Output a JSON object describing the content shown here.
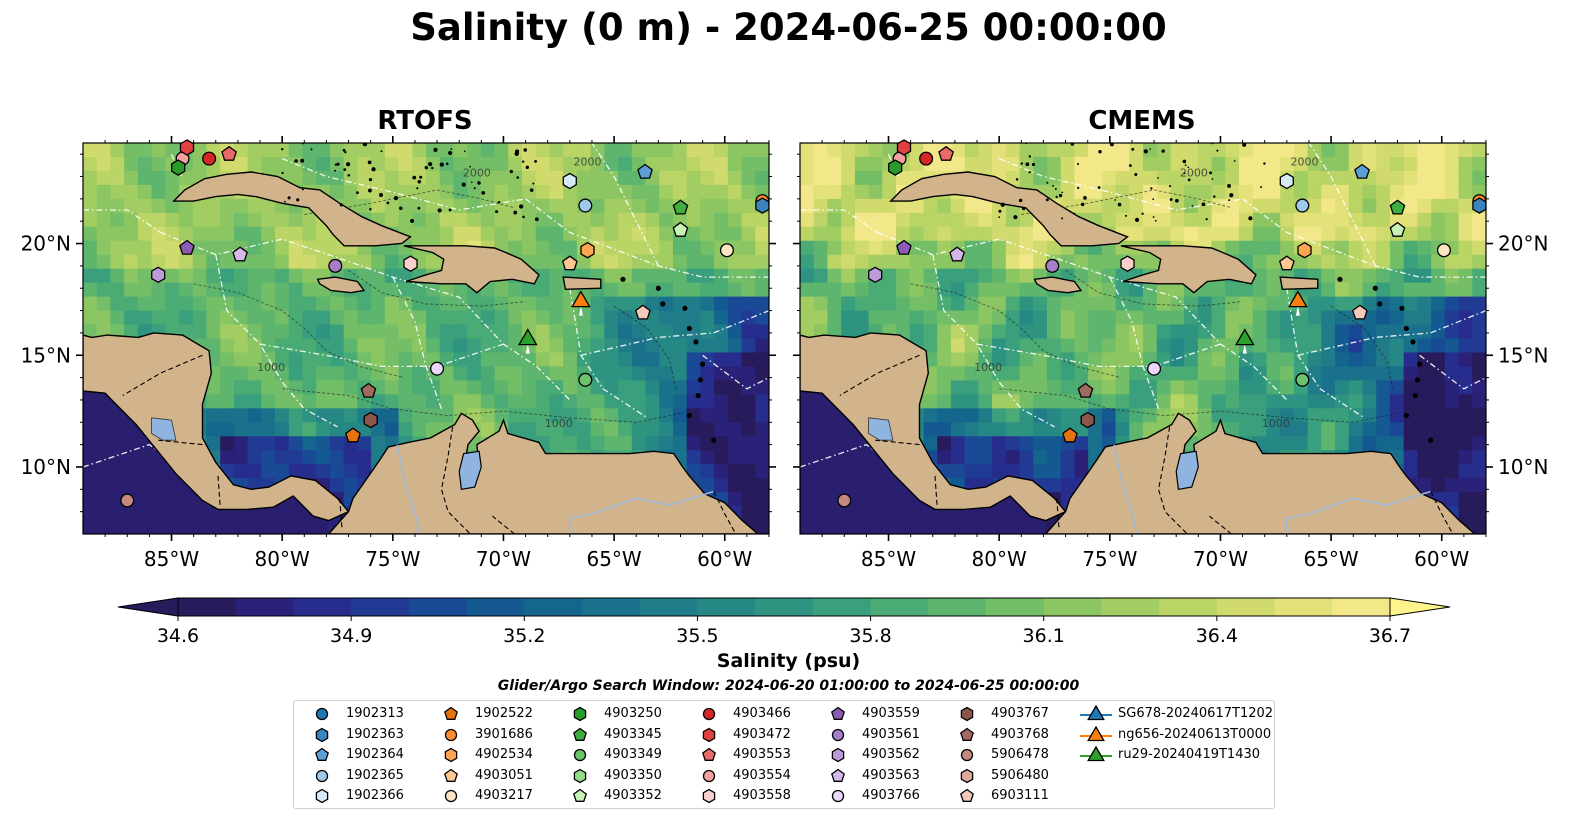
{
  "title": "Salinity (0 m) - 2024-06-25 00:00:00",
  "panels": [
    {
      "title": "RTOFS"
    },
    {
      "title": "CMEMS"
    }
  ],
  "map": {
    "lon_ticks": [
      "85°W",
      "80°W",
      "75°W",
      "70°W",
      "65°W",
      "60°W"
    ],
    "lat_ticks": [
      "20°N",
      "15°N",
      "10°N"
    ],
    "extent_lon": [
      -89,
      -58
    ],
    "extent_lat": [
      7,
      24.5
    ],
    "contour_labels": [
      "1000",
      "2000",
      "1000",
      "2000"
    ],
    "colors": {
      "land": "#d2b48c",
      "lakes": "#8fb4e0",
      "rivers": "#a0b8d8"
    }
  },
  "colorbar": {
    "min": 34.6,
    "max": 36.7,
    "ticks": [
      "34.6",
      "34.9",
      "35.2",
      "35.5",
      "35.8",
      "36.1",
      "36.4",
      "36.7"
    ],
    "label": "Salinity (psu)",
    "colors": [
      "#271b5c",
      "#2a2178",
      "#272d8c",
      "#213a94",
      "#1a4a95",
      "#145991",
      "#15668d",
      "#1a718b",
      "#1f7c88",
      "#258885",
      "#2e9381",
      "#3a9f7c",
      "#4aab75",
      "#5db56e",
      "#74be67",
      "#8bc662",
      "#a2cd62",
      "#bad465",
      "#d1da6d",
      "#e3e27a",
      "#f3e889"
    ]
  },
  "search_window": "Glider/Argo Search Window: 2024-06-20 01:00:00 to 2024-06-25 00:00:00",
  "legend": [
    {
      "label": "1902313",
      "marker": "circle",
      "color": "#1f77b4"
    },
    {
      "label": "1902363",
      "marker": "hexagon",
      "color": "#3a85bd"
    },
    {
      "label": "1902364",
      "marker": "pentagon",
      "color": "#5c9fd6"
    },
    {
      "label": "1902365",
      "marker": "circle",
      "color": "#9ec9ea"
    },
    {
      "label": "1902366",
      "marker": "hexagon",
      "color": "#d6e9f7"
    },
    {
      "label": "1902522",
      "marker": "pentagon",
      "color": "#e6740e"
    },
    {
      "label": "3901686",
      "marker": "circle",
      "color": "#ff8c2e"
    },
    {
      "label": "4902534",
      "marker": "hexagon",
      "color": "#ffa450"
    },
    {
      "label": "4903051",
      "marker": "pentagon",
      "color": "#ffc78f"
    },
    {
      "label": "4903217",
      "marker": "circle",
      "color": "#ffe4c4"
    },
    {
      "label": "4903250",
      "marker": "hexagon",
      "color": "#2a9b2a"
    },
    {
      "label": "4903345",
      "marker": "pentagon",
      "color": "#3fae3f"
    },
    {
      "label": "4903349",
      "marker": "circle",
      "color": "#6cc36c"
    },
    {
      "label": "4903350",
      "marker": "hexagon",
      "color": "#98da8a"
    },
    {
      "label": "4903352",
      "marker": "pentagon",
      "color": "#c8f2b8"
    },
    {
      "label": "4903466",
      "marker": "circle",
      "color": "#d62728"
    },
    {
      "label": "4903472",
      "marker": "hexagon",
      "color": "#e04040"
    },
    {
      "label": "4903553",
      "marker": "pentagon",
      "color": "#ea6a6a"
    },
    {
      "label": "4903554",
      "marker": "circle",
      "color": "#f4a0a0"
    },
    {
      "label": "4903558",
      "marker": "hexagon",
      "color": "#fbd0cc"
    },
    {
      "label": "4903559",
      "marker": "pentagon",
      "color": "#8d5bb5"
    },
    {
      "label": "4903561",
      "marker": "circle",
      "color": "#a77cc8"
    },
    {
      "label": "4903562",
      "marker": "hexagon",
      "color": "#bd9ad8"
    },
    {
      "label": "4903563",
      "marker": "pentagon",
      "color": "#d4b8ea"
    },
    {
      "label": "4903766",
      "marker": "circle",
      "color": "#ead8fb"
    },
    {
      "label": "4903767",
      "marker": "hexagon",
      "color": "#8c564b"
    },
    {
      "label": "4903768",
      "marker": "pentagon",
      "color": "#a06a5e"
    },
    {
      "label": "5906478",
      "marker": "circle",
      "color": "#c48a7e"
    },
    {
      "label": "5906480",
      "marker": "hexagon",
      "color": "#dba89c"
    },
    {
      "label": "6903111",
      "marker": "pentagon",
      "color": "#f5c8bc"
    },
    {
      "label": "SG678-20240617T1202",
      "marker": "triangle",
      "color": "#1f77b4"
    },
    {
      "label": "ng656-20240613T0000",
      "marker": "triangle",
      "color": "#ff7f0e"
    },
    {
      "label": "ru29-20240419T1430",
      "marker": "triangle",
      "color": "#2ca02c"
    }
  ],
  "floats": [
    {
      "id": "4903554",
      "lon": -84.5,
      "lat": 23.8
    },
    {
      "id": "4903472",
      "lon": -84.3,
      "lat": 24.3
    },
    {
      "id": "4903466",
      "lon": -83.3,
      "lat": 23.8
    },
    {
      "id": "4903553",
      "lon": -82.4,
      "lat": 24.0
    },
    {
      "id": "4903250",
      "lon": -84.7,
      "lat": 23.4
    },
    {
      "id": "4903559",
      "lon": -84.3,
      "lat": 19.8
    },
    {
      "id": "4903563",
      "lon": -81.9,
      "lat": 19.5
    },
    {
      "id": "4903562",
      "lon": -85.6,
      "lat": 18.6
    },
    {
      "id": "4903561",
      "lon": -77.6,
      "lat": 19.0
    },
    {
      "id": "4903558",
      "lon": -74.2,
      "lat": 19.1
    },
    {
      "id": "4903768",
      "lon": -76.1,
      "lat": 13.4
    },
    {
      "id": "4903767",
      "lon": -76.0,
      "lat": 12.1
    },
    {
      "id": "1902522",
      "lon": -76.8,
      "lat": 11.4
    },
    {
      "id": "4903766",
      "lon": -73.0,
      "lat": 14.4
    },
    {
      "id": "5906478",
      "lon": -87.0,
      "lat": 8.5
    },
    {
      "id": "1902366",
      "lon": -67.0,
      "lat": 22.8
    },
    {
      "id": "1902364",
      "lon": -63.6,
      "lat": 23.2
    },
    {
      "id": "1902365",
      "lon": -66.3,
      "lat": 21.7
    },
    {
      "id": "4903345",
      "lon": -62.0,
      "lat": 21.6
    },
    {
      "id": "4903352",
      "lon": -62.0,
      "lat": 20.6
    },
    {
      "id": "4902534",
      "lon": -66.2,
      "lat": 19.7
    },
    {
      "id": "4903051",
      "lon": -67.0,
      "lat": 19.1
    },
    {
      "id": "4903217",
      "lon": -59.9,
      "lat": 19.7
    },
    {
      "id": "3901686",
      "lon": -58.3,
      "lat": 21.9
    },
    {
      "id": "1902363",
      "lon": -58.3,
      "lat": 21.7
    },
    {
      "id": "6903111",
      "lon": -63.7,
      "lat": 16.9
    },
    {
      "id": "4903349",
      "lon": -66.3,
      "lat": 13.9
    }
  ],
  "gliders": [
    {
      "id": "ng656-20240613T0000",
      "lon": -66.5,
      "lat": 17.4
    },
    {
      "id": "ru29-20240419T1430",
      "lon": -68.9,
      "lat": 15.7
    }
  ]
}
